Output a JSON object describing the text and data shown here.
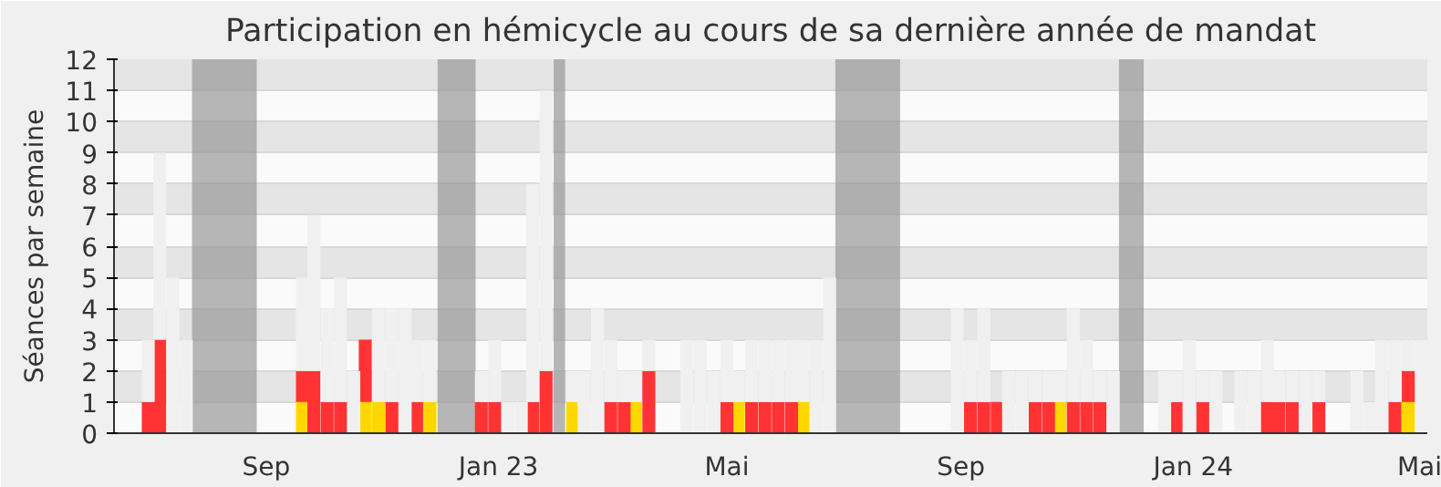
{
  "chart_data": {
    "type": "bar",
    "stacked": true,
    "title": "Participation en hémicycle au cours de sa dernière année de mandat",
    "ylabel": "Séances par semaine",
    "ylim": [
      0,
      12
    ],
    "yticks": [
      0,
      1,
      2,
      3,
      4,
      5,
      6,
      7,
      8,
      9,
      10,
      11,
      12
    ],
    "xlim": [
      "2022-06-13",
      "2024-05-03"
    ],
    "xticks": [
      {
        "value": "2022-09-01",
        "label": "Sep"
      },
      {
        "value": "2023-01-01",
        "label": "Jan 23"
      },
      {
        "value": "2023-05-01",
        "label": "Mai"
      },
      {
        "value": "2023-09-01",
        "label": "Sep"
      },
      {
        "value": "2024-01-01",
        "label": "Jan 24"
      },
      {
        "value": "2024-05-01",
        "label": "Mai"
      }
    ],
    "grid": "y",
    "bands": [
      {
        "axis": "x",
        "from": "2022-07-24",
        "to": "2022-08-27",
        "color": "#999999"
      },
      {
        "axis": "x",
        "from": "2022-11-30",
        "to": "2022-12-20",
        "color": "#999999"
      },
      {
        "axis": "x",
        "from": "2023-01-30",
        "to": "2023-02-05",
        "color": "#999999"
      },
      {
        "axis": "x",
        "from": "2023-06-27",
        "to": "2023-07-31",
        "color": "#999999"
      },
      {
        "axis": "x",
        "from": "2023-11-23",
        "to": "2023-12-06",
        "color": "#999999"
      }
    ],
    "x": [
      "2022-07-01",
      "2022-07-07",
      "2022-07-14",
      "2022-07-21",
      "2022-09-20",
      "2022-09-26",
      "2022-10-03",
      "2022-10-10",
      "2022-10-17",
      "2022-10-23",
      "2022-10-30",
      "2022-11-06",
      "2022-11-13",
      "2022-11-19",
      "2022-11-26",
      "2022-12-23",
      "2022-12-30",
      "2023-01-06",
      "2023-01-13",
      "2023-01-19",
      "2023-01-26",
      "2023-02-09",
      "2023-02-15",
      "2023-02-22",
      "2023-03-01",
      "2023-03-08",
      "2023-03-14",
      "2023-03-21",
      "2023-04-10",
      "2023-04-17",
      "2023-04-24",
      "2023-05-01",
      "2023-05-07",
      "2023-05-14",
      "2023-05-21",
      "2023-05-28",
      "2023-06-04",
      "2023-06-10",
      "2023-06-17",
      "2023-06-24",
      "2023-08-30",
      "2023-09-06",
      "2023-09-13",
      "2023-09-20",
      "2023-09-26",
      "2023-10-03",
      "2023-10-10",
      "2023-10-17",
      "2023-10-23",
      "2023-10-30",
      "2023-11-06",
      "2023-11-13",
      "2023-11-20",
      "2023-12-17",
      "2023-12-23",
      "2023-12-30",
      "2024-01-06",
      "2024-01-13",
      "2024-01-26",
      "2024-02-02",
      "2024-02-09",
      "2024-02-15",
      "2024-02-22",
      "2024-02-29",
      "2024-03-07",
      "2024-03-27",
      "2024-04-03",
      "2024-04-09",
      "2024-04-16",
      "2024-04-23",
      "2024-04-30"
    ],
    "series": [
      {
        "color": "#ffd700",
        "values": [
          null,
          null,
          null,
          null,
          1,
          null,
          null,
          null,
          null,
          1,
          1,
          null,
          null,
          null,
          1,
          null,
          null,
          null,
          null,
          null,
          null,
          1,
          null,
          null,
          null,
          null,
          1,
          null,
          null,
          null,
          null,
          null,
          1,
          null,
          null,
          null,
          null,
          1,
          null,
          null,
          null,
          null,
          null,
          null,
          null,
          null,
          null,
          null,
          1,
          null,
          null,
          null,
          null,
          null,
          null,
          null,
          null,
          null,
          null,
          null,
          null,
          null,
          null,
          null,
          null,
          null,
          null,
          null,
          null,
          1,
          null
        ]
      },
      {
        "color": "#ff3333",
        "values": [
          1,
          3,
          null,
          null,
          1,
          2,
          1,
          1,
          null,
          2,
          null,
          1,
          null,
          1,
          null,
          1,
          1,
          null,
          null,
          1,
          2,
          null,
          null,
          null,
          1,
          1,
          null,
          2,
          null,
          null,
          null,
          1,
          null,
          1,
          1,
          1,
          1,
          null,
          null,
          null,
          null,
          1,
          1,
          1,
          null,
          null,
          1,
          1,
          null,
          1,
          1,
          1,
          null,
          null,
          1,
          null,
          1,
          null,
          null,
          null,
          1,
          1,
          1,
          null,
          1,
          null,
          null,
          null,
          1,
          1,
          null
        ]
      },
      {
        "color": "#f0f0f0",
        "values": [
          2,
          6,
          5,
          3,
          3,
          5,
          3,
          4,
          2,
          null,
          3,
          3,
          4,
          2,
          2,
          1,
          2,
          1,
          1,
          7,
          9,
          1,
          2,
          4,
          2,
          1,
          1,
          1,
          3,
          3,
          2,
          2,
          1,
          2,
          2,
          2,
          2,
          2,
          3,
          5,
          4,
          2,
          3,
          null,
          2,
          2,
          1,
          1,
          1,
          3,
          2,
          1,
          2,
          2,
          1,
          3,
          1,
          2,
          2,
          2,
          2,
          1,
          1,
          2,
          1,
          2,
          1,
          3,
          2,
          1,
          3
        ]
      }
    ]
  }
}
